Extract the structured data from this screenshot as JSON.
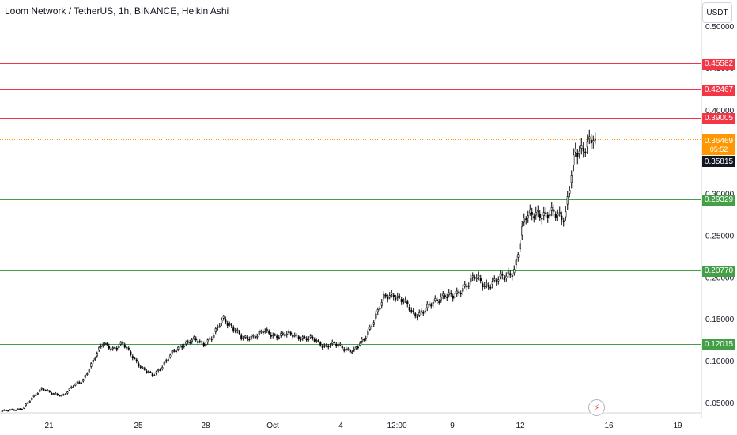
{
  "header": {
    "title": "Loom Network / TetherUS, 1h, BINANCE, Heikin Ashi"
  },
  "toolbar": {
    "currency_label": "USDT"
  },
  "last_price": {
    "value": "0.36469",
    "countdown": "05:52",
    "color": "#ff9800"
  },
  "prev_close": {
    "value": "0.35815"
  },
  "horizontal_lines": [
    {
      "value": 0.45582,
      "label": "0.45582",
      "color": "#f23645"
    },
    {
      "value": 0.42467,
      "label": "0.42467",
      "color": "#f23645"
    },
    {
      "value": 0.39005,
      "label": "0.39005",
      "color": "#f23645"
    },
    {
      "value": 0.29329,
      "label": "0.29329",
      "color": "#43a047"
    },
    {
      "value": 0.2077,
      "label": "0.20770",
      "color": "#43a047"
    },
    {
      "value": 0.12015,
      "label": "0.12015",
      "color": "#43a047"
    }
  ],
  "chart_data": {
    "type": "candlestick",
    "title": "Loom Network / TetherUS, 1h, BINANCE, Heikin Ashi",
    "y_axis": {
      "ticks": [
        "0.50000",
        "0.45000",
        "0.40000",
        "0.35000",
        "0.30000",
        "0.25000",
        "0.20000",
        "0.15000",
        "0.10000",
        "0.05000"
      ],
      "tick_values": [
        0.5,
        0.45,
        0.4,
        0.35,
        0.3,
        0.25,
        0.2,
        0.15,
        0.1,
        0.05
      ],
      "range": [
        0.03,
        0.52
      ],
      "side": "right"
    },
    "x_axis": {
      "ticks": [
        "21",
        "25",
        "28",
        "Oct",
        "4",
        "12:00",
        "9",
        "12",
        "16",
        "19"
      ]
    },
    "close_series": [
      0.04,
      0.041,
      0.043,
      0.055,
      0.068,
      0.06,
      0.058,
      0.07,
      0.075,
      0.1,
      0.12,
      0.115,
      0.12,
      0.105,
      0.09,
      0.082,
      0.095,
      0.11,
      0.12,
      0.125,
      0.12,
      0.13,
      0.15,
      0.14,
      0.125,
      0.13,
      0.135,
      0.13,
      0.132,
      0.13,
      0.128,
      0.125,
      0.118,
      0.12,
      0.115,
      0.112,
      0.125,
      0.15,
      0.175,
      0.18,
      0.17,
      0.155,
      0.16,
      0.17,
      0.18,
      0.175,
      0.19,
      0.2,
      0.19,
      0.195,
      0.2,
      0.21,
      0.27,
      0.28,
      0.27,
      0.28,
      0.27,
      0.35,
      0.358,
      0.36469
    ],
    "last_value": 0.36469
  }
}
